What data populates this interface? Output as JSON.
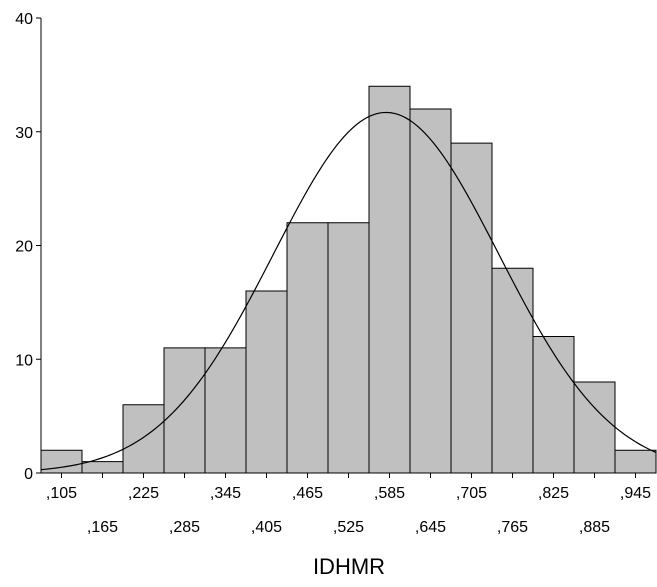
{
  "chart_data": {
    "type": "bar",
    "subtype": "histogram",
    "xlabel": "IDHMR",
    "ylabel": "",
    "ylim": [
      0,
      40
    ],
    "y_ticks": [
      "0",
      "10",
      "20",
      "30",
      "40"
    ],
    "bin_centers": [
      0.105,
      0.165,
      0.225,
      0.285,
      0.345,
      0.405,
      0.465,
      0.525,
      0.585,
      0.645,
      0.705,
      0.765,
      0.825,
      0.885,
      0.945
    ],
    "categories": [
      ",105",
      ",165",
      ",225",
      ",285",
      ",345",
      ",405",
      ",465",
      ",525",
      ",585",
      ",645",
      ",705",
      ",765",
      ",825",
      ",885",
      ",945"
    ],
    "values": [
      2,
      1,
      6,
      11,
      11,
      16,
      22,
      22,
      34,
      32,
      29,
      18,
      12,
      8,
      2
    ],
    "curve": {
      "type": "normal",
      "peak_x": 0.58,
      "peak_y": 31.7
    },
    "grid": false,
    "colors": {
      "bar_fill": "#c0c0c0",
      "bar_stroke": "#000000",
      "curve": "#000000",
      "axis": "#000000"
    }
  }
}
